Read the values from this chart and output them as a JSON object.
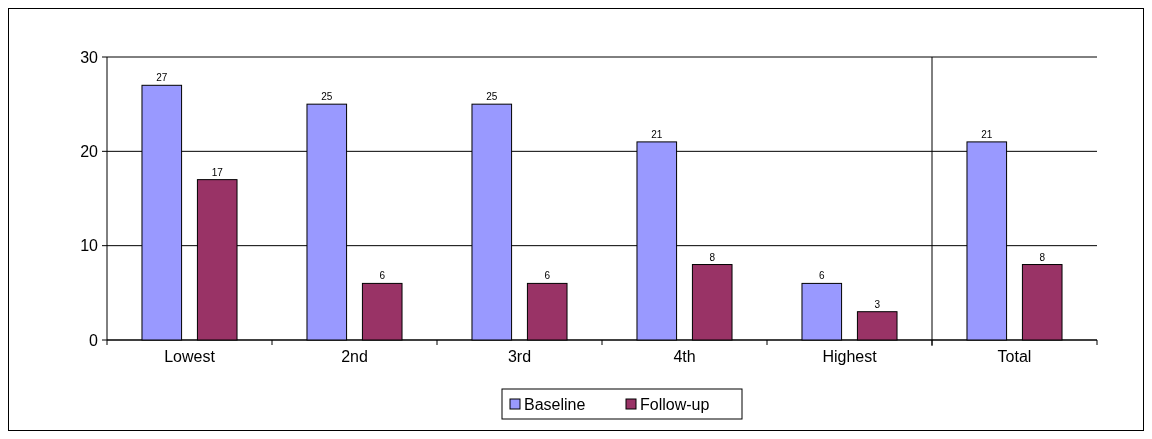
{
  "chart_data": {
    "type": "bar",
    "categories": [
      "Lowest",
      "2nd",
      "3rd",
      "4th",
      "Highest",
      "Total"
    ],
    "series": [
      {
        "name": "Baseline",
        "color": "#9999ff",
        "values": [
          27,
          25,
          25,
          21,
          6,
          21
        ]
      },
      {
        "name": "Follow-up",
        "color": "#993366",
        "values": [
          17,
          6,
          6,
          8,
          3,
          8
        ]
      }
    ],
    "ylim": [
      0,
      30
    ],
    "yticks": [
      0,
      10,
      20,
      30
    ],
    "grid": "y",
    "legend": "bottom",
    "data_labels": true
  }
}
